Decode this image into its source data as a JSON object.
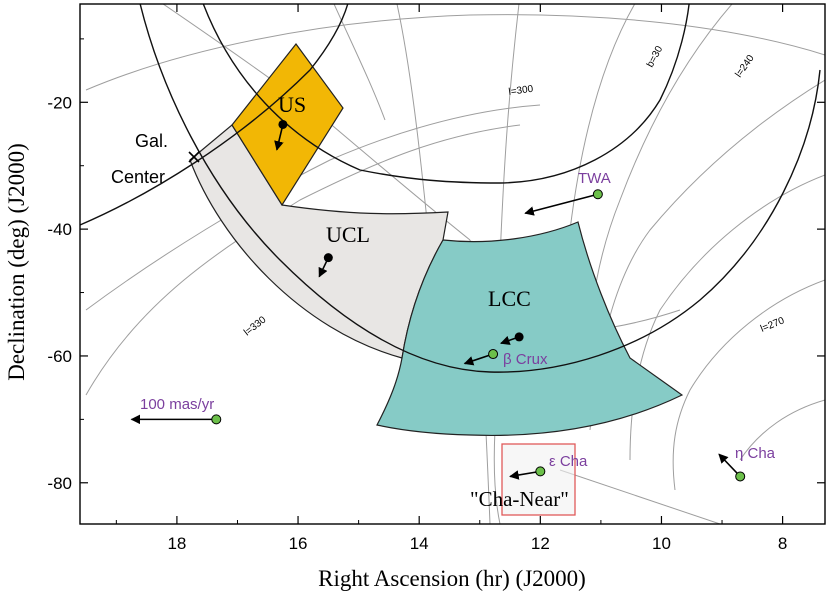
{
  "chart_data": {
    "type": "scatter",
    "xlabel": "Right Ascension (hr) (J2000)",
    "ylabel": "Declination (deg) (J2000)",
    "xlim": [
      19.6,
      7.3
    ],
    "ylim": [
      -86.5,
      -4.5
    ],
    "x_ticks": [
      18,
      16,
      14,
      12,
      10,
      8
    ],
    "y_ticks": [
      -20,
      -40,
      -60,
      -80
    ],
    "grid": "galactic coordinate curves",
    "colors": {
      "US": "#F2B705",
      "UCL": "#E8E6E4",
      "LCC": "#86CBC6",
      "cha_box_edge": "#E05A5A",
      "member_label": "#7B3F9E",
      "star_fill": "#6CC04A",
      "galactic_lines": "#9E9E9E"
    },
    "gridline_labels": [
      "l=300",
      "b=30",
      "l=240",
      "l=330",
      "l=270"
    ],
    "regions": [
      {
        "name": "US",
        "center": {
          "ra": 16.25,
          "dec": -23.5
        },
        "motion": {
          "ra": 16.35,
          "dec": -27.5
        }
      },
      {
        "name": "UCL",
        "center": {
          "ra": 15.5,
          "dec": -44.5
        },
        "motion": {
          "ra": 15.65,
          "dec": -47.5
        }
      },
      {
        "name": "LCC",
        "center": {
          "ra": 12.35,
          "dec": -57.0
        },
        "motion": {
          "ra": 12.65,
          "dec": -58.0
        }
      }
    ],
    "region_label_text": [
      "US",
      "UCL",
      "LCC"
    ],
    "stars": [
      {
        "name": "TWA",
        "ra": 11.05,
        "dec": -34.5,
        "motion": {
          "ra": 12.25,
          "dec": -37.5
        }
      },
      {
        "name": "β Crux",
        "ra": 12.78,
        "dec": -59.7,
        "motion": {
          "ra": 13.25,
          "dec": -61.2
        }
      },
      {
        "name": "100 mas/yr",
        "ra": 17.35,
        "dec": -70.0,
        "motion": {
          "ra": 18.75,
          "dec": -70.0
        }
      },
      {
        "name": "ε Cha",
        "ra": 12.0,
        "dec": -78.2,
        "motion": {
          "ra": 12.5,
          "dec": -79.0
        }
      },
      {
        "name": "η Cha",
        "ra": 8.7,
        "dec": -79.0,
        "motion": {
          "ra": 9.05,
          "dec": -75.5
        }
      }
    ],
    "galactic_center": {
      "label_line1": "Gal.",
      "label_line2": "Center",
      "ra": 17.75,
      "dec": -28.9
    },
    "cha_near": {
      "label": "\"Cha-Near\"",
      "ra_range": [
        12.95,
        11.5
      ],
      "dec_range": [
        -85.0,
        -74.0
      ]
    }
  }
}
